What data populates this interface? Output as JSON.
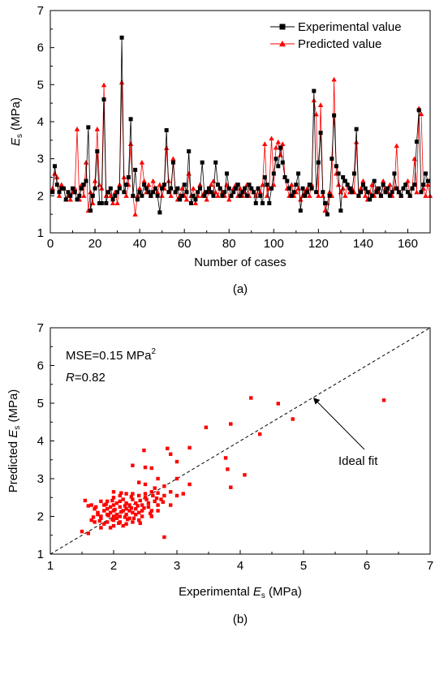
{
  "chart_data": [
    {
      "type": "line",
      "panel_label": "(a)",
      "xlabel": "Number of cases",
      "ylabel": "E",
      "ylabel_sub": "s",
      "ylabel_unit": " (MPa)",
      "xlim": [
        0,
        170
      ],
      "ylim": [
        1,
        7
      ],
      "xticks": [
        0,
        20,
        40,
        60,
        80,
        100,
        120,
        140,
        160
      ],
      "yticks": [
        1,
        2,
        3,
        4,
        5,
        6,
        7
      ],
      "legend_position": "top-right",
      "colors": {
        "experimental": "#000000",
        "predicted": "#ff0000"
      },
      "series": [
        {
          "name": "Experimental value",
          "marker": "square",
          "values": [
            2.1,
            2.8,
            2.3,
            2.1,
            2.2,
            2.2,
            1.9,
            2.1,
            2.0,
            2.2,
            2.1,
            1.9,
            2.0,
            2.2,
            2.3,
            2.4,
            3.85,
            1.6,
            2.0,
            2.2,
            3.2,
            1.8,
            1.8,
            4.6,
            1.8,
            2.1,
            2.2,
            1.9,
            2.0,
            2.1,
            2.2,
            6.27,
            2.1,
            2.3,
            2.5,
            4.07,
            2.0,
            2.7,
            1.9,
            2.1,
            2.0,
            2.3,
            2.2,
            2.1,
            2.0,
            2.1,
            2.2,
            2.0,
            1.55,
            2.2,
            2.3,
            3.77,
            2.1,
            2.2,
            2.9,
            2.1,
            2.2,
            1.9,
            2.0,
            2.3,
            2.1,
            3.2,
            1.8,
            2.0,
            1.9,
            2.1,
            2.2,
            2.9,
            2.0,
            2.1,
            2.2,
            2.1,
            2.0,
            2.9,
            2.3,
            2.2,
            2.0,
            2.1,
            2.6,
            2.2,
            2.0,
            2.1,
            2.2,
            2.3,
            2.0,
            2.1,
            2.2,
            2.0,
            2.3,
            2.2,
            2.1,
            1.8,
            2.2,
            2.0,
            1.8,
            2.5,
            2.3,
            1.8,
            2.2,
            2.6,
            3.0,
            2.8,
            3.3,
            2.9,
            2.5,
            2.4,
            2.2,
            2.0,
            2.1,
            2.3,
            2.6,
            1.6,
            2.2,
            2.0,
            2.1,
            2.3,
            2.2,
            4.83,
            2.1,
            2.9,
            3.7,
            2.1,
            1.8,
            1.5,
            2.0,
            3.0,
            4.17,
            2.8,
            2.6,
            1.6,
            2.5,
            2.4,
            2.3,
            2.2,
            2.1,
            2.6,
            3.8,
            2.0,
            2.1,
            2.3,
            2.2,
            2.1,
            1.9,
            2.0,
            2.4,
            2.1,
            2.2,
            2.0,
            2.3,
            2.1,
            2.2,
            2.0,
            2.1,
            2.6,
            2.2,
            2.1,
            2.0,
            2.2,
            2.3,
            2.1,
            2.0,
            2.2,
            2.3,
            3.46,
            4.31,
            2.1,
            2.3,
            2.6,
            2.4
          ]
        },
        {
          "name": "Predicted value",
          "marker": "triangle",
          "values": [
            2.2,
            2.6,
            2.5,
            2.0,
            2.3,
            2.2,
            1.9,
            2.0,
            1.9,
            2.1,
            2.2,
            3.8,
            1.9,
            2.3,
            2.0,
            2.9,
            1.6,
            2.1,
            1.8,
            2.4,
            3.8,
            2.3,
            2.2,
            4.99,
            2.0,
            2.1,
            2.0,
            1.8,
            2.1,
            1.8,
            2.3,
            5.06,
            2.5,
            2.0,
            2.3,
            3.4,
            2.0,
            1.5,
            2.0,
            2.2,
            2.9,
            2.4,
            2.1,
            2.3,
            2.0,
            2.4,
            2.2,
            2.1,
            2.3,
            2.0,
            2.2,
            3.29,
            2.4,
            2.0,
            3.0,
            2.1,
            1.9,
            2.0,
            2.2,
            2.0,
            1.9,
            2.6,
            2.0,
            2.2,
            1.8,
            2.0,
            2.3,
            2.0,
            2.1,
            1.9,
            2.1,
            2.3,
            2.4,
            2.1,
            2.0,
            2.2,
            2.1,
            2.0,
            2.3,
            1.9,
            2.0,
            2.2,
            2.3,
            2.0,
            2.2,
            2.0,
            2.1,
            2.3,
            2.0,
            2.2,
            2.1,
            2.0,
            2.2,
            2.1,
            2.3,
            3.4,
            2.0,
            2.2,
            3.55,
            2.3,
            3.3,
            3.45,
            3.1,
            3.4,
            2.5,
            2.2,
            2.0,
            2.3,
            2.0,
            2.1,
            2.2,
            1.9,
            2.0,
            2.1,
            2.2,
            2.0,
            2.3,
            4.58,
            4.2,
            2.0,
            4.45,
            2.0,
            1.6,
            1.8,
            2.1,
            2.0,
            5.14,
            2.6,
            2.3,
            2.1,
            2.2,
            2.0,
            2.3,
            2.1,
            2.2,
            2.1,
            3.45,
            2.0,
            2.2,
            2.4,
            2.0,
            1.9,
            2.1,
            2.3,
            2.0,
            2.2,
            2.1,
            2.0,
            2.4,
            2.2,
            2.1,
            2.3,
            2.0,
            2.2,
            3.35,
            2.1,
            2.0,
            2.2,
            2.3,
            2.4,
            2.0,
            2.2,
            3.0,
            2.1,
            4.36,
            4.21,
            2.2,
            2.0,
            2.3,
            2.0
          ]
        }
      ]
    },
    {
      "type": "scatter",
      "panel_label": "(b)",
      "xlabel": "Experimental ",
      "xlabel_var": "E",
      "xlabel_sub": "s",
      "xlabel_unit": " (MPa)",
      "ylabel": "Predicted ",
      "ylabel_var": "E",
      "ylabel_sub": "s",
      "ylabel_unit": " (MPa)",
      "xlim": [
        1,
        7
      ],
      "ylim": [
        1,
        7
      ],
      "xticks": [
        1,
        2,
        3,
        4,
        5,
        6,
        7
      ],
      "yticks": [
        1,
        2,
        3,
        4,
        5,
        6,
        7
      ],
      "annotations": {
        "mse_text": "MSE=0.15 MPa",
        "mse_sup": "2",
        "r_var": "R",
        "r_text": "=0.82",
        "ideal_fit": "Ideal fit"
      },
      "ideal_line": [
        [
          1,
          1
        ],
        [
          7,
          7
        ]
      ],
      "point_color": "#ff0000",
      "points": [
        [
          6.27,
          5.08
        ],
        [
          4.17,
          5.14
        ],
        [
          4.6,
          4.99
        ],
        [
          4.83,
          4.58
        ],
        [
          3.85,
          4.45
        ],
        [
          3.46,
          4.36
        ],
        [
          4.31,
          4.18
        ],
        [
          3.77,
          3.55
        ],
        [
          3.2,
          3.82
        ],
        [
          2.48,
          3.75
        ],
        [
          2.85,
          3.8
        ],
        [
          2.9,
          3.65
        ],
        [
          3.0,
          3.45
        ],
        [
          3.8,
          3.25
        ],
        [
          4.07,
          3.1
        ],
        [
          3.85,
          2.77
        ],
        [
          2.3,
          3.35
        ],
        [
          2.5,
          3.3
        ],
        [
          2.6,
          3.28
        ],
        [
          2.7,
          3.0
        ],
        [
          3.0,
          3.0
        ],
        [
          3.2,
          2.85
        ],
        [
          2.8,
          1.45
        ],
        [
          2.5,
          2.85
        ],
        [
          2.6,
          2.65
        ],
        [
          2.7,
          2.62
        ],
        [
          2.9,
          2.65
        ],
        [
          2.8,
          2.55
        ],
        [
          2.4,
          2.9
        ],
        [
          2.0,
          2.65
        ],
        [
          1.55,
          2.42
        ],
        [
          1.6,
          2.28
        ],
        [
          1.65,
          2.3
        ],
        [
          1.7,
          2.2
        ],
        [
          1.75,
          2.1
        ],
        [
          1.5,
          1.6
        ],
        [
          1.6,
          1.55
        ],
        [
          1.8,
          2.4
        ],
        [
          1.85,
          2.3
        ],
        [
          1.9,
          2.2
        ],
        [
          1.95,
          2.1
        ],
        [
          2.0,
          2.0
        ],
        [
          2.05,
          2.35
        ],
        [
          2.1,
          2.25
        ],
        [
          2.15,
          2.15
        ],
        [
          2.2,
          2.05
        ],
        [
          2.25,
          1.95
        ],
        [
          2.3,
          2.45
        ],
        [
          2.35,
          2.2
        ],
        [
          2.4,
          2.1
        ],
        [
          2.45,
          2.3
        ],
        [
          2.5,
          2.5
        ],
        [
          2.55,
          2.25
        ],
        [
          2.6,
          2.15
        ],
        [
          2.65,
          2.4
        ],
        [
          2.7,
          2.3
        ],
        [
          2.75,
          2.45
        ],
        [
          2.6,
          2.0
        ],
        [
          2.4,
          1.9
        ],
        [
          2.2,
          1.8
        ],
        [
          2.0,
          1.75
        ],
        [
          1.8,
          1.7
        ],
        [
          1.9,
          1.85
        ],
        [
          2.0,
          1.9
        ],
        [
          2.1,
          2.0
        ],
        [
          2.2,
          2.2
        ],
        [
          2.3,
          2.1
        ],
        [
          2.1,
          1.85
        ],
        [
          1.9,
          2.05
        ],
        [
          1.8,
          1.95
        ],
        [
          1.7,
          1.85
        ],
        [
          2.0,
          2.15
        ],
        [
          2.1,
          2.4
        ],
        [
          2.2,
          2.35
        ],
        [
          1.95,
          2.25
        ],
        [
          2.15,
          2.45
        ],
        [
          2.25,
          2.3
        ],
        [
          2.35,
          2.05
        ],
        [
          2.05,
          1.95
        ],
        [
          1.85,
          2.15
        ],
        [
          1.75,
          2.05
        ],
        [
          1.65,
          1.9
        ],
        [
          2.3,
          2.6
        ],
        [
          2.4,
          2.55
        ],
        [
          2.5,
          2.6
        ],
        [
          2.55,
          2.35
        ],
        [
          2.45,
          2.15
        ],
        [
          2.0,
          2.5
        ],
        [
          2.1,
          2.55
        ],
        [
          1.9,
          2.4
        ],
        [
          2.2,
          2.6
        ],
        [
          2.3,
          1.85
        ],
        [
          2.45,
          2.0
        ],
        [
          2.15,
          1.75
        ],
        [
          1.95,
          1.7
        ],
        [
          2.05,
          2.05
        ],
        [
          2.25,
          2.15
        ],
        [
          2.35,
          2.35
        ],
        [
          1.85,
          1.8
        ],
        [
          2.7,
          2.15
        ],
        [
          2.9,
          2.3
        ],
        [
          3.0,
          2.55
        ],
        [
          3.1,
          2.6
        ],
        [
          2.8,
          2.8
        ],
        [
          2.65,
          2.75
        ],
        [
          1.8,
          2.0
        ],
        [
          2.0,
          2.3
        ],
        [
          2.12,
          2.12
        ],
        [
          2.18,
          1.98
        ],
        [
          2.28,
          2.22
        ],
        [
          1.92,
          2.02
        ],
        [
          2.02,
          2.18
        ],
        [
          2.32,
          1.95
        ],
        [
          2.42,
          2.42
        ],
        [
          1.72,
          2.25
        ],
        [
          1.88,
          2.32
        ],
        [
          2.08,
          1.82
        ],
        [
          2.22,
          1.92
        ],
        [
          2.38,
          2.28
        ],
        [
          2.52,
          2.45
        ],
        [
          2.62,
          2.55
        ],
        [
          1.78,
          1.88
        ],
        [
          1.98,
          1.92
        ],
        [
          2.18,
          2.28
        ],
        [
          2.28,
          2.52
        ],
        [
          2.48,
          2.22
        ],
        [
          2.58,
          2.08
        ],
        [
          1.68,
          1.98
        ],
        [
          2.42,
          1.82
        ],
        [
          2.12,
          2.62
        ],
        [
          1.98,
          2.42
        ],
        [
          2.68,
          2.48
        ],
        [
          2.78,
          2.38
        ]
      ]
    }
  ]
}
